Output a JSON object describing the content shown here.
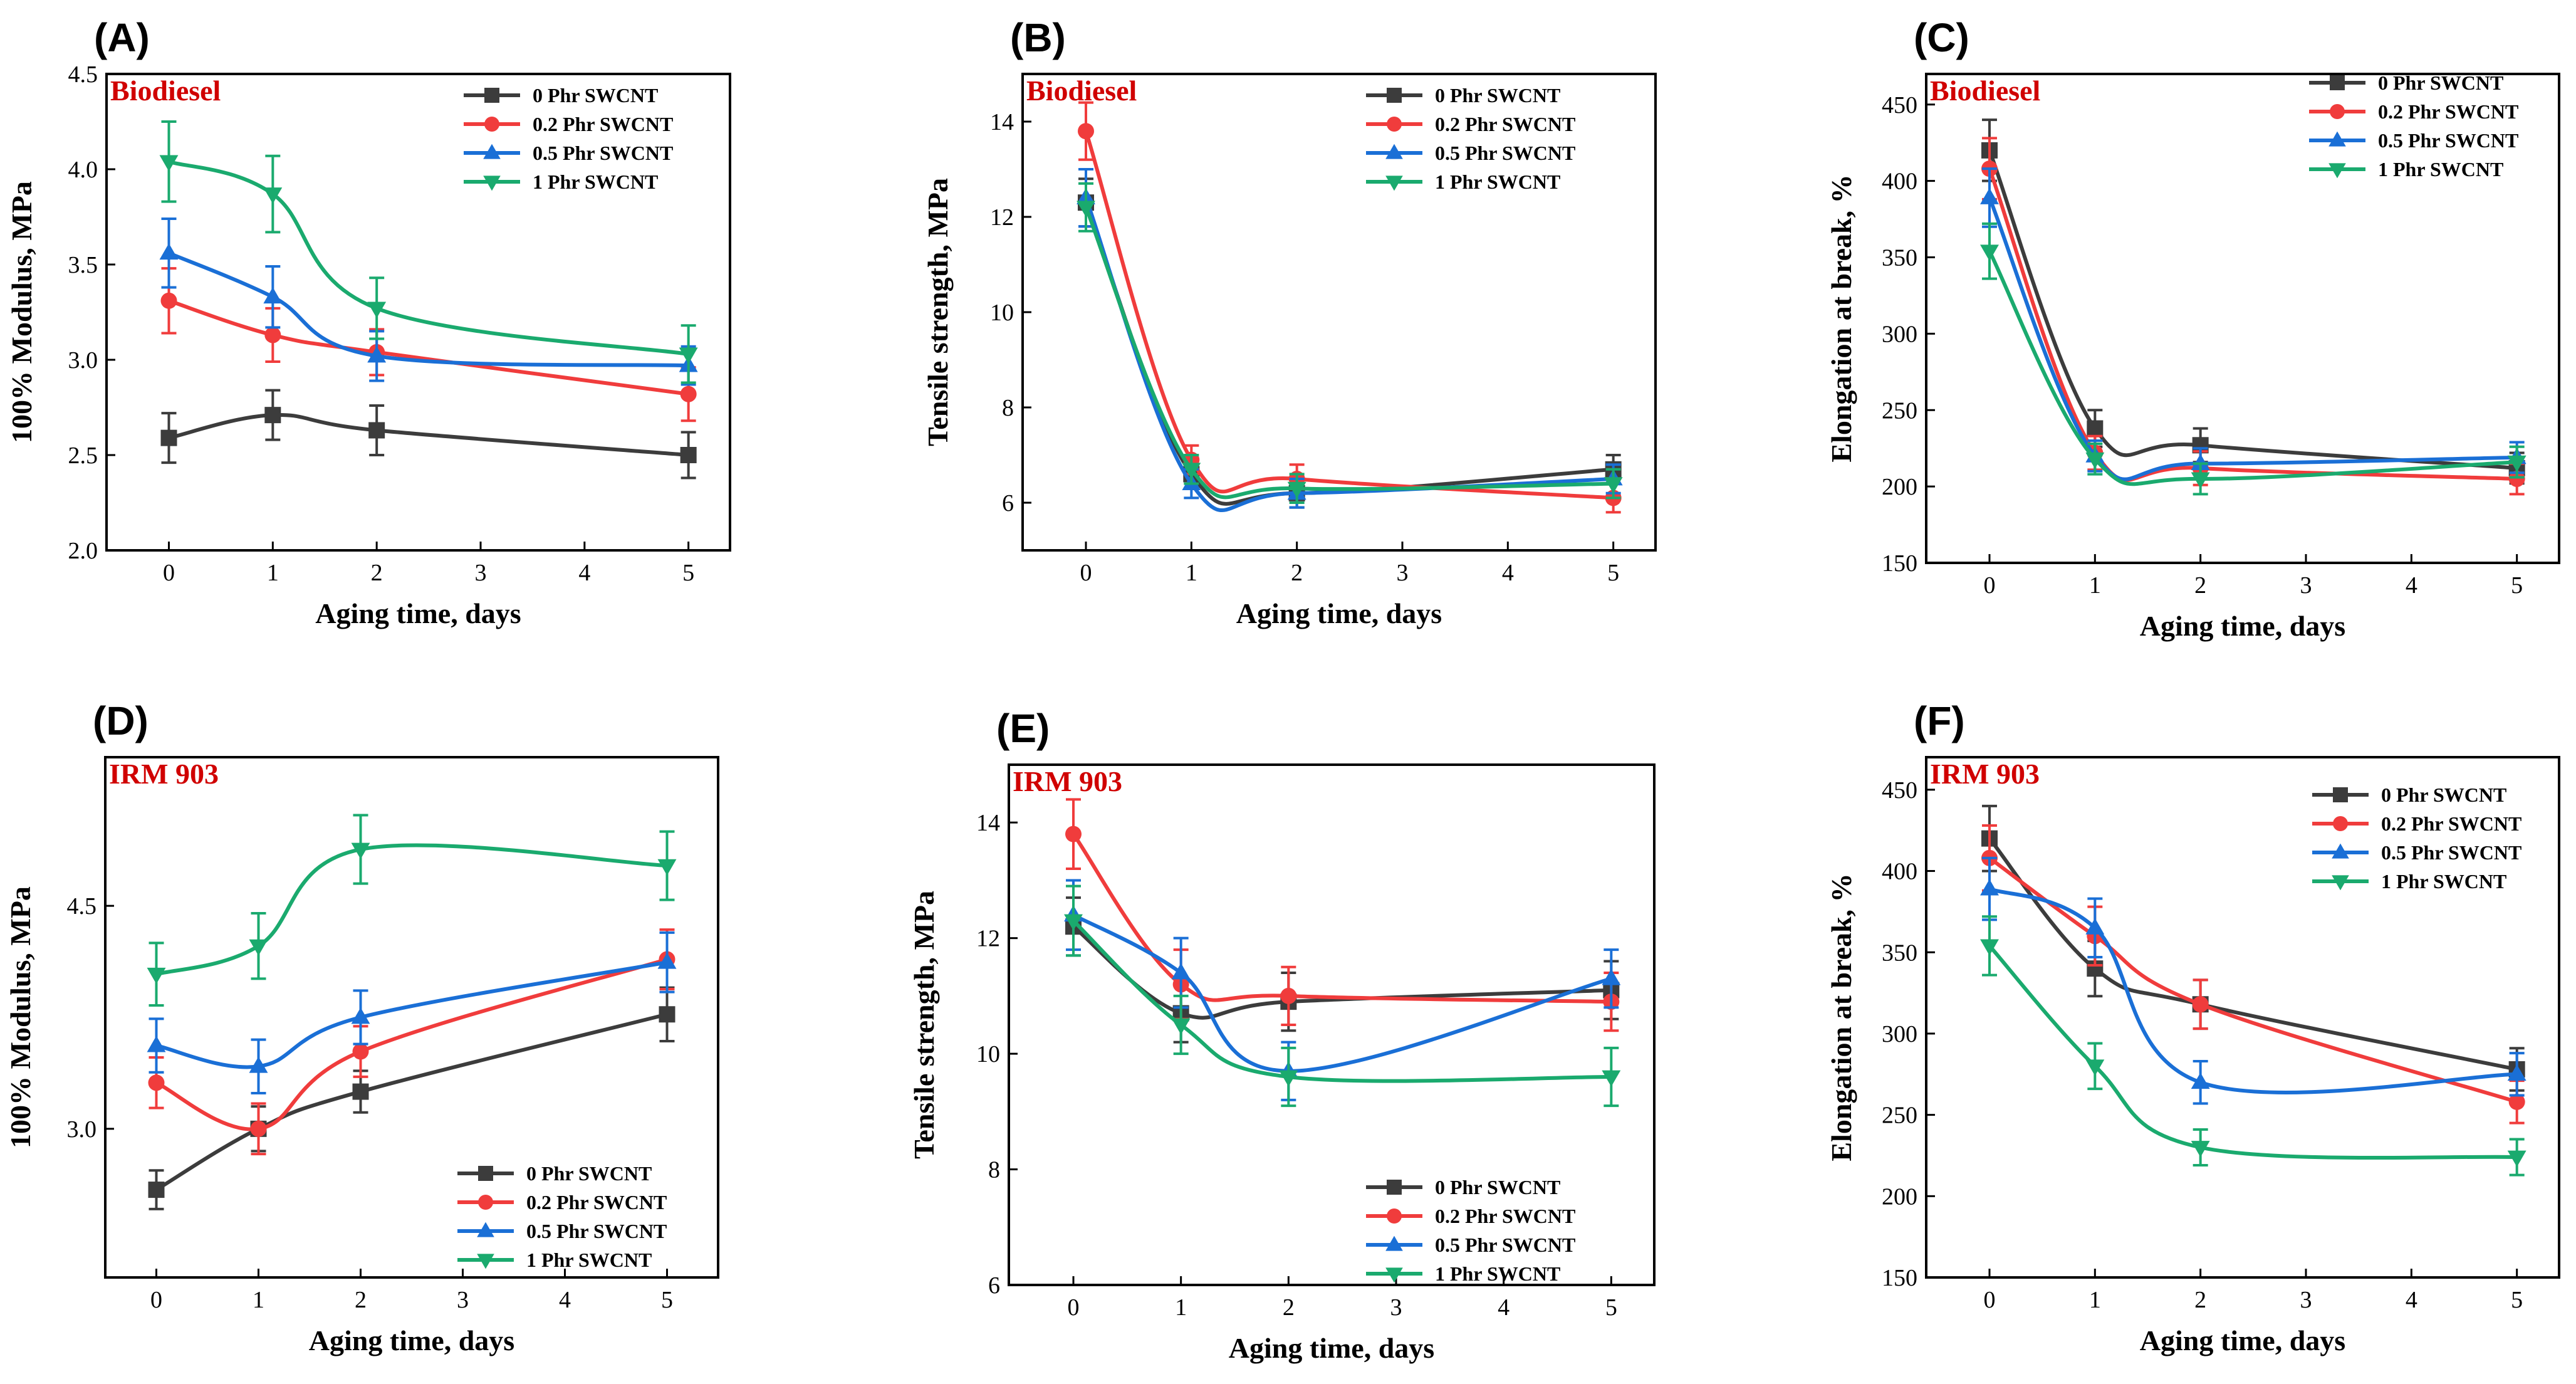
{
  "chart_data": [
    {
      "type": "line",
      "panel": "(A)",
      "condition": "Biodiesel",
      "xlabel": "Aging time, days",
      "ylabel": "100% Modulus, MPa",
      "xlim": [
        -0.6,
        5.4
      ],
      "xticks": [
        0,
        1,
        2,
        3,
        4,
        5
      ],
      "ylim": [
        2.0,
        4.5
      ],
      "yticks": [
        2.0,
        2.5,
        3.0,
        3.5,
        4.0,
        4.5
      ],
      "ytick_labels": [
        "2.0",
        "2.5",
        "3.0",
        "3.5",
        "4.0",
        "4.5"
      ],
      "legend": "top-right",
      "x": [
        0,
        1,
        2,
        5
      ],
      "series": [
        {
          "name": "0  Phr SWCNT",
          "values": [
            2.59,
            2.71,
            2.63,
            2.5
          ],
          "errors": [
            0.13,
            0.13,
            0.13,
            0.12
          ]
        },
        {
          "name": "0.2 Phr SWCNT",
          "values": [
            3.31,
            3.13,
            3.04,
            2.82
          ],
          "errors": [
            0.17,
            0.14,
            0.12,
            0.14
          ]
        },
        {
          "name": "0.5 Phr SWCNT",
          "values": [
            3.56,
            3.33,
            3.02,
            2.97
          ],
          "errors": [
            0.18,
            0.16,
            0.13,
            0.1
          ]
        },
        {
          "name": "1  Phr SWCNT",
          "values": [
            4.04,
            3.87,
            3.27,
            3.03
          ],
          "errors": [
            0.21,
            0.2,
            0.16,
            0.15
          ]
        }
      ]
    },
    {
      "type": "line",
      "panel": "(B)",
      "condition": "Biodiesel",
      "xlabel": "Aging time, days",
      "ylabel": "Tensile strength, MPa",
      "xlim": [
        -0.6,
        5.4
      ],
      "xticks": [
        0,
        1,
        2,
        3,
        4,
        5
      ],
      "ylim": [
        5.0,
        15.0
      ],
      "yticks": [
        6,
        8,
        10,
        12,
        14
      ],
      "ytick_labels": [
        "6",
        "8",
        "10",
        "12",
        "14"
      ],
      "legend": "top-right",
      "x": [
        0,
        1,
        2,
        5
      ],
      "series": [
        {
          "name": "0  Phr SWCNT",
          "values": [
            12.3,
            6.6,
            6.2,
            6.7
          ],
          "errors": [
            0.5,
            0.3,
            0.3,
            0.3
          ]
        },
        {
          "name": "0.2 Phr SWCNT",
          "values": [
            13.8,
            6.9,
            6.5,
            6.1
          ],
          "errors": [
            0.6,
            0.3,
            0.3,
            0.3
          ]
        },
        {
          "name": "0.5 Phr SWCNT",
          "values": [
            12.4,
            6.4,
            6.2,
            6.5
          ],
          "errors": [
            0.6,
            0.3,
            0.3,
            0.3
          ]
        },
        {
          "name": "1  Phr SWCNT",
          "values": [
            12.2,
            6.7,
            6.3,
            6.4
          ],
          "errors": [
            0.5,
            0.3,
            0.3,
            0.3
          ]
        }
      ]
    },
    {
      "type": "line",
      "panel": "(C)",
      "condition": "Biodiesel",
      "xlabel": "Aging time, days",
      "ylabel": "Elongation at break, %",
      "xlim": [
        -0.6,
        5.4
      ],
      "xticks": [
        0,
        1,
        2,
        3,
        4,
        5
      ],
      "ylim": [
        150,
        470
      ],
      "yticks": [
        150,
        200,
        250,
        300,
        350,
        400,
        450
      ],
      "ytick_labels": [
        "150",
        "200",
        "250",
        "300",
        "350",
        "400",
        "450"
      ],
      "legend": "top-right",
      "x": [
        0,
        1,
        2,
        5
      ],
      "series": [
        {
          "name": "0  Phr SWCNT",
          "values": [
            420,
            238,
            227,
            212
          ],
          "errors": [
            20,
            12,
            11,
            10
          ]
        },
        {
          "name": "0.2 Phr SWCNT",
          "values": [
            408,
            222,
            212,
            205
          ],
          "errors": [
            20,
            11,
            11,
            10
          ]
        },
        {
          "name": "0.5 Phr SWCNT",
          "values": [
            389,
            220,
            215,
            219
          ],
          "errors": [
            19,
            10,
            10,
            10
          ]
        },
        {
          "name": "1  Phr SWCNT",
          "values": [
            354,
            218,
            205,
            216
          ],
          "errors": [
            18,
            10,
            10,
            10
          ]
        }
      ]
    },
    {
      "type": "line",
      "panel": "(D)",
      "condition": "IRM 903",
      "xlabel": "Aging time, days",
      "ylabel": "100% Modulus, MPa",
      "xlim": [
        -0.5,
        5.5
      ],
      "xticks": [
        0,
        1,
        2,
        3,
        4,
        5
      ],
      "ylim": [
        2.0,
        5.5
      ],
      "yticks": [
        3.0,
        4.5
      ],
      "ytick_labels": [
        "3.0",
        "4.5"
      ],
      "legend": "bottom-right",
      "x": [
        0,
        1,
        2,
        5
      ],
      "series": [
        {
          "name": "0  Phr SWCNT",
          "values": [
            2.59,
            3.0,
            3.25,
            3.77
          ],
          "errors": [
            0.13,
            0.15,
            0.14,
            0.18
          ]
        },
        {
          "name": "0.2 Phr SWCNT",
          "values": [
            3.31,
            3.0,
            3.52,
            4.14
          ],
          "errors": [
            0.17,
            0.17,
            0.17,
            0.2
          ]
        },
        {
          "name": "0.5 Phr SWCNT",
          "values": [
            3.56,
            3.42,
            3.75,
            4.12
          ],
          "errors": [
            0.18,
            0.18,
            0.18,
            0.2
          ]
        },
        {
          "name": "1  Phr SWCNT",
          "values": [
            4.04,
            4.23,
            4.88,
            4.77
          ],
          "errors": [
            0.21,
            0.22,
            0.23,
            0.23
          ]
        }
      ]
    },
    {
      "type": "line",
      "panel": "(E)",
      "condition": "IRM 903",
      "xlabel": "Aging time, days",
      "ylabel": "Tensile strength, MPa",
      "xlim": [
        -0.6,
        5.4
      ],
      "xticks": [
        0,
        1,
        2,
        3,
        4,
        5
      ],
      "ylim": [
        6.0,
        15.0
      ],
      "yticks": [
        6,
        8,
        10,
        12,
        14
      ],
      "ytick_labels": [
        "6",
        "8",
        "10",
        "12",
        "14"
      ],
      "legend": "bottom-right",
      "x": [
        0,
        1,
        2,
        5
      ],
      "series": [
        {
          "name": "0  Phr SWCNT",
          "values": [
            12.2,
            10.7,
            10.9,
            11.1
          ],
          "errors": [
            0.5,
            0.5,
            0.5,
            0.5
          ]
        },
        {
          "name": "0.2 Phr SWCNT",
          "values": [
            13.8,
            11.2,
            11.0,
            10.9
          ],
          "errors": [
            0.6,
            0.6,
            0.5,
            0.5
          ]
        },
        {
          "name": "0.5 Phr SWCNT",
          "values": [
            12.4,
            11.4,
            9.7,
            11.3
          ],
          "errors": [
            0.6,
            0.6,
            0.5,
            0.5
          ]
        },
        {
          "name": "1  Phr SWCNT",
          "values": [
            12.3,
            10.5,
            9.6,
            9.6
          ],
          "errors": [
            0.6,
            0.5,
            0.5,
            0.5
          ]
        }
      ]
    },
    {
      "type": "line",
      "panel": "(F)",
      "condition": "IRM 903",
      "xlabel": "Aging time, days",
      "ylabel": "Elongation at break, %",
      "xlim": [
        -0.6,
        5.4
      ],
      "xticks": [
        0,
        1,
        2,
        3,
        4,
        5
      ],
      "ylim": [
        150,
        470
      ],
      "yticks": [
        150,
        200,
        250,
        300,
        350,
        400,
        450
      ],
      "ytick_labels": [
        "150",
        "200",
        "250",
        "300",
        "350",
        "400",
        "450"
      ],
      "legend": "top-right",
      "x": [
        0,
        1,
        2,
        5
      ],
      "series": [
        {
          "name": "0  Phr SWCNT",
          "values": [
            420,
            340,
            318,
            278
          ],
          "errors": [
            20,
            17,
            15,
            13
          ]
        },
        {
          "name": "0.2 Phr SWCNT",
          "values": [
            408,
            360,
            318,
            258
          ],
          "errors": [
            20,
            18,
            15,
            13
          ]
        },
        {
          "name": "0.5 Phr SWCNT",
          "values": [
            389,
            365,
            270,
            275
          ],
          "errors": [
            19,
            18,
            13,
            13
          ]
        },
        {
          "name": "1  Phr SWCNT",
          "values": [
            354,
            280,
            230,
            224
          ],
          "errors": [
            18,
            14,
            11,
            11
          ]
        }
      ]
    }
  ],
  "series_colors": [
    "#3c3c3c",
    "#f03c3c",
    "#1a6fd6",
    "#1aaa6e"
  ],
  "condition_color": "#d00000",
  "marker_shapes": [
    "square",
    "circle",
    "triangle-up",
    "triangle-down"
  ]
}
